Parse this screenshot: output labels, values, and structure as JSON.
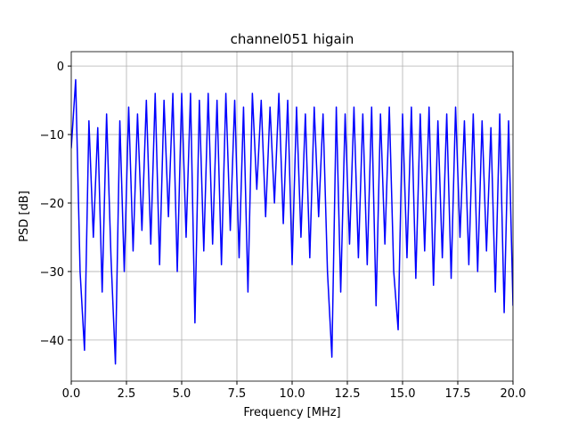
{
  "chart_data": {
    "type": "line",
    "title": "channel051 higain",
    "xlabel": "Frequency [MHz]",
    "ylabel": "PSD [dB]",
    "x": [
      0.0,
      0.2,
      0.4,
      0.6,
      0.8,
      1.0,
      1.2,
      1.4,
      1.6,
      1.8,
      2.0,
      2.2,
      2.4,
      2.6,
      2.8,
      3.0,
      3.2,
      3.4,
      3.6,
      3.8,
      4.0,
      4.2,
      4.4,
      4.6,
      4.8,
      5.0,
      5.2,
      5.4,
      5.6,
      5.8,
      6.0,
      6.2,
      6.4,
      6.6,
      6.8,
      7.0,
      7.2,
      7.4,
      7.6,
      7.8,
      8.0,
      8.2,
      8.4,
      8.6,
      8.8,
      9.0,
      9.2,
      9.4,
      9.6,
      9.8,
      10.0,
      10.2,
      10.4,
      10.6,
      10.8,
      11.0,
      11.2,
      11.4,
      11.6,
      11.8,
      12.0,
      12.2,
      12.4,
      12.6,
      12.8,
      13.0,
      13.2,
      13.4,
      13.6,
      13.8,
      14.0,
      14.2,
      14.4,
      14.6,
      14.8,
      15.0,
      15.2,
      15.4,
      15.6,
      15.8,
      16.0,
      16.2,
      16.4,
      16.6,
      16.8,
      17.0,
      17.2,
      17.4,
      17.6,
      17.8,
      18.0,
      18.2,
      18.4,
      18.6,
      18.8,
      19.0,
      19.2,
      19.4,
      19.6,
      19.8,
      20.0
    ],
    "series": [
      {
        "color": "#0000ff",
        "values": [
          -12,
          -2,
          -30,
          -41.5,
          -8,
          -25,
          -9,
          -33,
          -7,
          -28,
          -43.5,
          -8,
          -30,
          -6,
          -27,
          -7,
          -24,
          -5,
          -26,
          -4,
          -29,
          -5,
          -22,
          -4,
          -30,
          -4,
          -25,
          -4,
          -37.5,
          -5,
          -27,
          -4,
          -26,
          -5,
          -29,
          -4,
          -24,
          -5,
          -28,
          -6,
          -33,
          -4,
          -18,
          -5,
          -22,
          -6,
          -20,
          -4,
          -23,
          -5,
          -29,
          -6,
          -25,
          -7,
          -28,
          -6,
          -22,
          -7,
          -30,
          -42.5,
          -6,
          -33,
          -7,
          -26,
          -6,
          -28,
          -7,
          -29,
          -6,
          -35,
          -7,
          -26,
          -6,
          -30,
          -38.5,
          -7,
          -28,
          -6,
          -31,
          -7,
          -27,
          -6,
          -32,
          -8,
          -28,
          -7,
          -31,
          -6,
          -25,
          -8,
          -29,
          -7,
          -30,
          -8,
          -27,
          -9,
          -33,
          -7,
          -36,
          -8,
          -35
        ]
      }
    ],
    "xlim": [
      0,
      20
    ],
    "ylim": [
      -46,
      2.1
    ],
    "xticks": [
      {
        "value": 0,
        "label": "0.0"
      },
      {
        "value": 2.5,
        "label": "2.5"
      },
      {
        "value": 5,
        "label": "5.0"
      },
      {
        "value": 7.5,
        "label": "7.5"
      },
      {
        "value": 10,
        "label": "10.0"
      },
      {
        "value": 12.5,
        "label": "12.5"
      },
      {
        "value": 15,
        "label": "15.0"
      },
      {
        "value": 17.5,
        "label": "17.5"
      },
      {
        "value": 20,
        "label": "20.0"
      }
    ],
    "yticks": [
      0,
      {
        "value": -10,
        "label": "−10"
      },
      {
        "value": -20,
        "label": "−20"
      },
      {
        "value": -30,
        "label": "−30"
      },
      {
        "value": -40,
        "label": "−40"
      }
    ],
    "grid": true
  }
}
